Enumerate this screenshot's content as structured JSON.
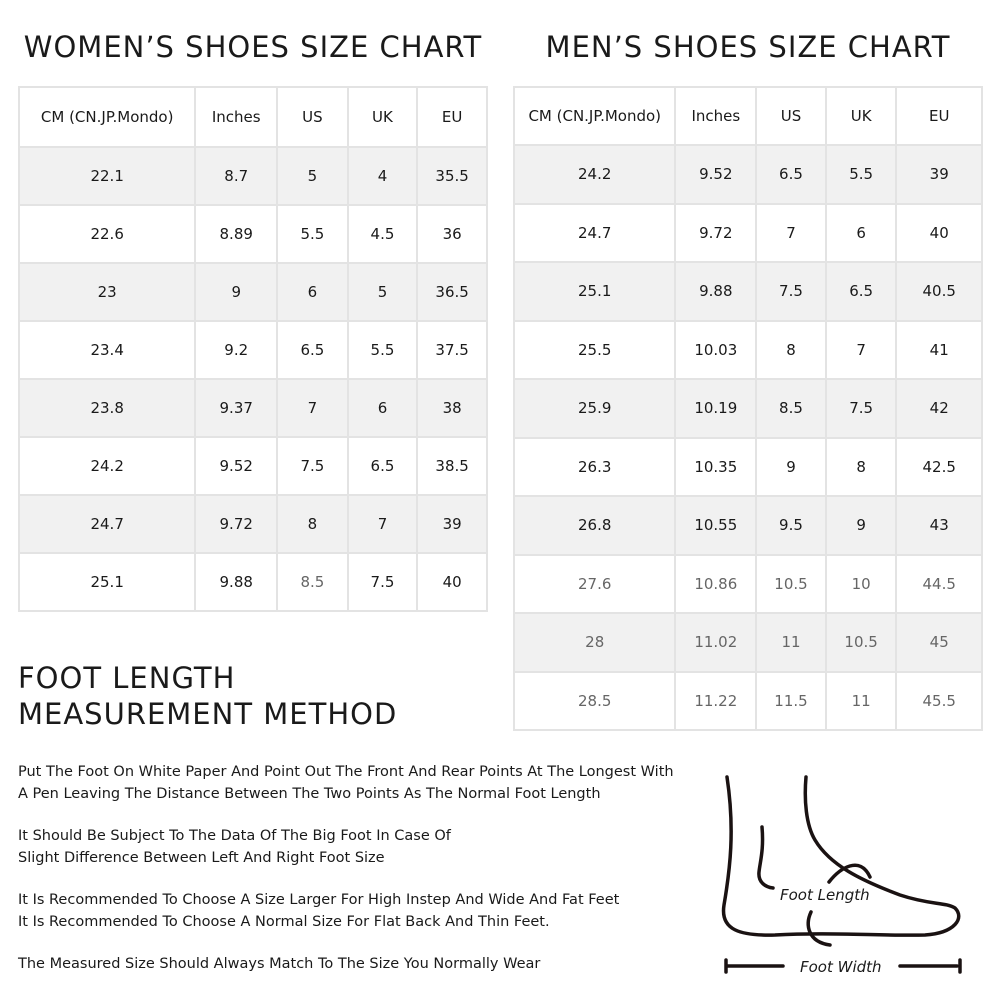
{
  "women": {
    "title": "WOMEN’S SHOES SIZE CHART",
    "headers": [
      "CM (CN.JP.Mondo)",
      "Inches",
      "US",
      "UK",
      "EU"
    ],
    "rows": [
      [
        "22.1",
        "8.7",
        "5",
        "4",
        "35.5"
      ],
      [
        "22.6",
        "8.89",
        "5.5",
        "4.5",
        "36"
      ],
      [
        "23",
        "9",
        "6",
        "5",
        "36.5"
      ],
      [
        "23.4",
        "9.2",
        "6.5",
        "5.5",
        "37.5"
      ],
      [
        "23.8",
        "9.37",
        "7",
        "6",
        "38"
      ],
      [
        "24.2",
        "9.52",
        "7.5",
        "6.5",
        "38.5"
      ],
      [
        "24.7",
        "9.72",
        "8",
        "7",
        "39"
      ],
      [
        "25.1",
        "9.88",
        "8.5",
        "7.5",
        "40"
      ]
    ]
  },
  "men": {
    "title": "MEN’S SHOES SIZE CHART",
    "headers": [
      "CM (CN.JP.Mondo)",
      "Inches",
      "US",
      "UK",
      "EU"
    ],
    "rows": [
      [
        "24.2",
        "9.52",
        "6.5",
        "5.5",
        "39"
      ],
      [
        "24.7",
        "9.72",
        "7",
        "6",
        "40"
      ],
      [
        "25.1",
        "9.88",
        "7.5",
        "6.5",
        "40.5"
      ],
      [
        "25.5",
        "10.03",
        "8",
        "7",
        "41"
      ],
      [
        "25.9",
        "10.19",
        "8.5",
        "7.5",
        "42"
      ],
      [
        "26.3",
        "10.35",
        "9",
        "8",
        "42.5"
      ],
      [
        "26.8",
        "10.55",
        "9.5",
        "9",
        "43"
      ],
      [
        "27.6",
        "10.86",
        "10.5",
        "10",
        "44.5"
      ],
      [
        "28",
        "11.02",
        "11",
        "10.5",
        "45"
      ],
      [
        "28.5",
        "11.22",
        "11.5",
        "11",
        "45.5"
      ]
    ]
  },
  "method": {
    "title_line1": "FOOT LENGTH",
    "title_line2": "MEASUREMENT METHOD",
    "paragraphs": [
      [
        "Put The Foot On White Paper And Point Out The Front And Rear Points At The Longest With",
        "A Pen Leaving The Distance Between The Two Points As The Normal Foot Length"
      ],
      [
        "It Should Be Subject To The Data Of The Big Foot In Case Of",
        "Slight Difference Between Left And Right Foot Size"
      ],
      [
        "It Is Recommended To Choose A Size Larger For High Instep And Wide And Fat Feet",
        "It Is Recommended To Choose A Normal Size For Flat Back And Thin Feet."
      ],
      [
        "The Measured Size Should Always Match To The Size You Normally Wear"
      ]
    ]
  },
  "diagram": {
    "foot_length_label": "Foot Length",
    "foot_width_label": "Foot Width",
    "icon": "foot-outline-icon"
  }
}
